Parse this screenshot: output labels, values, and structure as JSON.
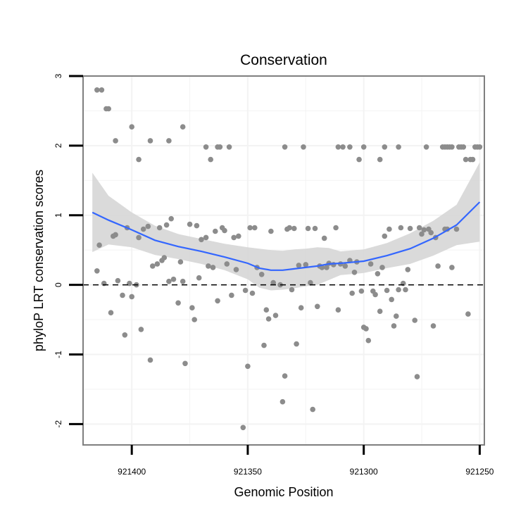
{
  "chart_data": {
    "type": "scatter",
    "title": "Conservation",
    "xlabel": "Genomic Position",
    "ylabel": "phyloP LRT conservation scores",
    "x_reversed": true,
    "xlim": [
      921421,
      921248
    ],
    "ylim": [
      -2.3,
      3
    ],
    "x_ticks": [
      921400,
      921350,
      921300,
      921250
    ],
    "x_tick_labels": [
      "921400",
      "921350",
      "921300",
      "921250"
    ],
    "y_ticks": [
      -2,
      -1,
      0,
      1,
      2,
      3
    ],
    "y_tick_labels": [
      "-2",
      "-1",
      "0",
      "1",
      "2",
      "3"
    ],
    "reference_line": {
      "y": 0,
      "style": "dashed"
    },
    "grid": true,
    "colors": {
      "points": "#8c8c8c",
      "smooth_line": "#3366ff",
      "ribbon": "#d3d3d3",
      "panel_border": "#7f7f7f",
      "gridlines": "#f3f3f3"
    },
    "points": [
      [
        921415,
        2.8
      ],
      [
        921413,
        2.8
      ],
      [
        921411,
        2.53
      ],
      [
        921410,
        2.53
      ],
      [
        921407,
        2.07
      ],
      [
        921400,
        2.27
      ],
      [
        921397,
        1.8
      ],
      [
        921392,
        2.07
      ],
      [
        921384,
        2.07
      ],
      [
        921378,
        2.27
      ],
      [
        921368,
        1.98
      ],
      [
        921366,
        1.8
      ],
      [
        921363,
        1.98
      ],
      [
        921362,
        1.98
      ],
      [
        921358,
        1.98
      ],
      [
        921334,
        1.98
      ],
      [
        921326,
        1.98
      ],
      [
        921311,
        1.98
      ],
      [
        921309,
        1.98
      ],
      [
        921306,
        1.98
      ],
      [
        921302,
        1.8
      ],
      [
        921300,
        1.98
      ],
      [
        921293,
        1.8
      ],
      [
        921291,
        1.98
      ],
      [
        921285,
        1.98
      ],
      [
        921273,
        1.98
      ],
      [
        921264,
        1.98
      ],
      [
        921262,
        1.98
      ],
      [
        921259,
        1.98
      ],
      [
        921258,
        1.98
      ],
      [
        921257,
        1.98
      ],
      [
        921252,
        1.98
      ],
      [
        921251,
        1.98
      ],
      [
        921250,
        1.98
      ],
      [
        921254,
        1.8
      ],
      [
        921253,
        1.8
      ],
      [
        921256,
        1.8
      ],
      [
        921263,
        1.98
      ],
      [
        921265,
        1.98
      ],
      [
        921266,
        1.98
      ],
      [
        921415,
        0.2
      ],
      [
        921414,
        0.57
      ],
      [
        921412,
        0.02
      ],
      [
        921409,
        -0.4
      ],
      [
        921408,
        0.7
      ],
      [
        921407,
        0.72
      ],
      [
        921406,
        0.06
      ],
      [
        921404,
        -0.15
      ],
      [
        921403,
        -0.72
      ],
      [
        921402,
        0.82
      ],
      [
        921401,
        0.02
      ],
      [
        921400,
        -0.17
      ],
      [
        921398,
        0.0
      ],
      [
        921397,
        0.68
      ],
      [
        921396,
        -0.64
      ],
      [
        921395,
        0.8
      ],
      [
        921393,
        0.84
      ],
      [
        921392,
        -1.08
      ],
      [
        921391,
        0.27
      ],
      [
        921389,
        0.3
      ],
      [
        921388,
        0.82
      ],
      [
        921387,
        0.35
      ],
      [
        921386,
        0.39
      ],
      [
        921385,
        0.86
      ],
      [
        921384,
        0.05
      ],
      [
        921383,
        0.95
      ],
      [
        921382,
        0.08
      ],
      [
        921380,
        -0.26
      ],
      [
        921379,
        0.33
      ],
      [
        921378,
        0.05
      ],
      [
        921377,
        -1.13
      ],
      [
        921375,
        0.87
      ],
      [
        921374,
        -0.33
      ],
      [
        921373,
        -0.5
      ],
      [
        921372,
        0.85
      ],
      [
        921371,
        0.1
      ],
      [
        921370,
        0.65
      ],
      [
        921368,
        0.68
      ],
      [
        921367,
        0.27
      ],
      [
        921365,
        0.25
      ],
      [
        921364,
        0.77
      ],
      [
        921363,
        -0.23
      ],
      [
        921361,
        0.82
      ],
      [
        921360,
        0.78
      ],
      [
        921359,
        0.3
      ],
      [
        921357,
        -0.15
      ],
      [
        921356,
        0.68
      ],
      [
        921355,
        0.22
      ],
      [
        921354,
        0.7
      ],
      [
        921352,
        -2.05
      ],
      [
        921351,
        -0.08
      ],
      [
        921350,
        -1.17
      ],
      [
        921349,
        0.82
      ],
      [
        921348,
        -0.12
      ],
      [
        921347,
        0.82
      ],
      [
        921346,
        0.25
      ],
      [
        921344,
        0.15
      ],
      [
        921343,
        -0.87
      ],
      [
        921342,
        -0.36
      ],
      [
        921341,
        -0.49
      ],
      [
        921340,
        0.77
      ],
      [
        921339,
        0.03
      ],
      [
        921338,
        -0.44
      ],
      [
        921336,
        0.0
      ],
      [
        921335,
        -1.68
      ],
      [
        921334,
        -1.31
      ],
      [
        921333,
        0.8
      ],
      [
        921332,
        0.82
      ],
      [
        921331,
        -0.07
      ],
      [
        921330,
        0.81
      ],
      [
        921329,
        -0.85
      ],
      [
        921328,
        0.28
      ],
      [
        921327,
        -0.33
      ],
      [
        921325,
        0.29
      ],
      [
        921324,
        0.81
      ],
      [
        921323,
        0.03
      ],
      [
        921322,
        -1.79
      ],
      [
        921321,
        0.81
      ],
      [
        921320,
        -0.31
      ],
      [
        921319,
        0.27
      ],
      [
        921318,
        0.25
      ],
      [
        921317,
        0.67
      ],
      [
        921316,
        0.25
      ],
      [
        921315,
        0.31
      ],
      [
        921313,
        0.29
      ],
      [
        921312,
        0.82
      ],
      [
        921311,
        -0.36
      ],
      [
        921310,
        0.3
      ],
      [
        921308,
        0.27
      ],
      [
        921306,
        0.35
      ],
      [
        921305,
        -0.12
      ],
      [
        921304,
        0.18
      ],
      [
        921303,
        0.33
      ],
      [
        921301,
        -0.09
      ],
      [
        921300,
        -0.61
      ],
      [
        921299,
        -0.63
      ],
      [
        921298,
        -0.8
      ],
      [
        921297,
        0.3
      ],
      [
        921296,
        -0.09
      ],
      [
        921295,
        -0.14
      ],
      [
        921294,
        0.16
      ],
      [
        921293,
        -0.38
      ],
      [
        921292,
        0.25
      ],
      [
        921291,
        0.7
      ],
      [
        921290,
        -0.08
      ],
      [
        921289,
        0.8
      ],
      [
        921288,
        -0.21
      ],
      [
        921287,
        -0.59
      ],
      [
        921286,
        -0.45
      ],
      [
        921285,
        -0.07
      ],
      [
        921284,
        0.82
      ],
      [
        921283,
        0.02
      ],
      [
        921282,
        -0.07
      ],
      [
        921281,
        0.22
      ],
      [
        921280,
        0.81
      ],
      [
        921278,
        -0.51
      ],
      [
        921277,
        -1.32
      ],
      [
        921276,
        0.82
      ],
      [
        921275,
        0.73
      ],
      [
        921274,
        0.79
      ],
      [
        921272,
        0.8
      ],
      [
        921271,
        0.75
      ],
      [
        921270,
        -0.59
      ],
      [
        921269,
        0.68
      ],
      [
        921268,
        0.27
      ],
      [
        921265,
        0.8
      ],
      [
        921264,
        0.8
      ],
      [
        921262,
        0.25
      ],
      [
        921260,
        0.8
      ],
      [
        921255,
        -0.42
      ]
    ],
    "smooth": {
      "x": [
        921417,
        921410,
        921400,
        921390,
        921380,
        921370,
        921360,
        921350,
        921345,
        921340,
        921335,
        921330,
        921325,
        921320,
        921315,
        921310,
        921300,
        921290,
        921280,
        921270,
        921260,
        921250
      ],
      "y": [
        1.04,
        0.93,
        0.79,
        0.64,
        0.55,
        0.48,
        0.4,
        0.31,
        0.24,
        0.21,
        0.21,
        0.23,
        0.25,
        0.27,
        0.3,
        0.31,
        0.34,
        0.42,
        0.52,
        0.67,
        0.86,
        1.19
      ],
      "lower": [
        0.47,
        0.58,
        0.54,
        0.43,
        0.37,
        0.3,
        0.21,
        0.08,
        -0.04,
        -0.08,
        -0.07,
        -0.05,
        -0.02,
        0.0,
        0.07,
        0.14,
        0.17,
        0.24,
        0.3,
        0.42,
        0.57,
        0.62
      ],
      "upper": [
        1.61,
        1.28,
        1.04,
        0.85,
        0.73,
        0.66,
        0.59,
        0.54,
        0.52,
        0.5,
        0.49,
        0.51,
        0.52,
        0.54,
        0.53,
        0.48,
        0.51,
        0.6,
        0.74,
        0.92,
        1.15,
        1.76
      ]
    }
  }
}
